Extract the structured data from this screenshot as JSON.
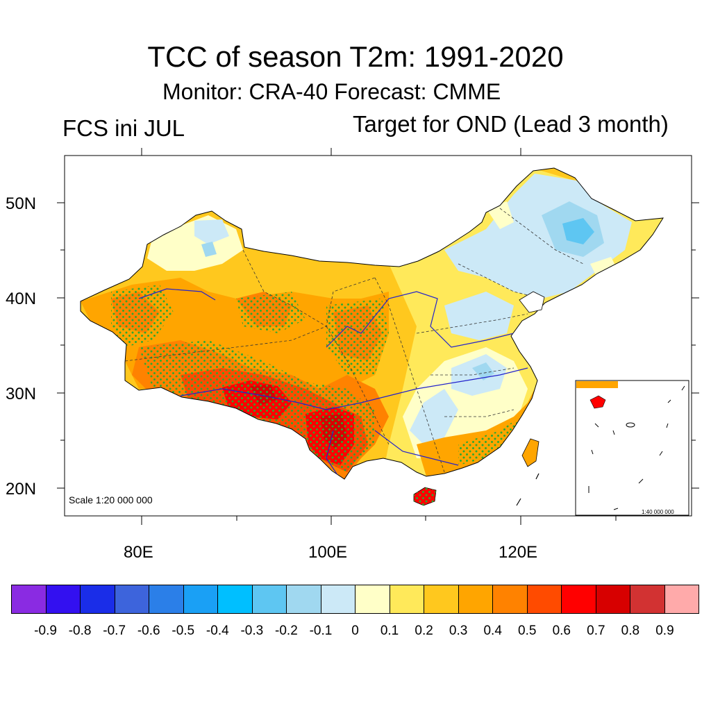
{
  "title": "TCC of season T2m: 1991-2020",
  "subtitle": "Monitor: CRA-40   Forecast: CMME",
  "left_label": "FCS ini JUL",
  "right_label": "Target for OND (Lead 3 month)",
  "lat_labels": [
    "50N",
    "40N",
    "30N",
    "20N"
  ],
  "lon_labels": [
    "80E",
    "100E",
    "120E"
  ],
  "scale_main": "Scale 1:20 000 000",
  "scale_inset": "1:40 000 000",
  "colorbar": {
    "colors": [
      "#8a2be2",
      "#3310f0",
      "#1a2de8",
      "#3d64dc",
      "#2b7fe8",
      "#1aa0f5",
      "#00bfff",
      "#5ec6f2",
      "#a0d8f0",
      "#cce9f7",
      "#ffffc8",
      "#ffe95a",
      "#ffc81e",
      "#ffa500",
      "#ff8200",
      "#ff4b00",
      "#ff0000",
      "#d70000",
      "#d23232",
      "#ffaaaa"
    ],
    "labels": [
      "-0.9",
      "-0.8",
      "-0.7",
      "-0.6",
      "-0.5",
      "-0.4",
      "-0.3",
      "-0.2",
      "-0.1",
      "0",
      "0.1",
      "0.2",
      "0.3",
      "0.4",
      "0.5",
      "0.6",
      "0.7",
      "0.8",
      "0.9"
    ]
  }
}
